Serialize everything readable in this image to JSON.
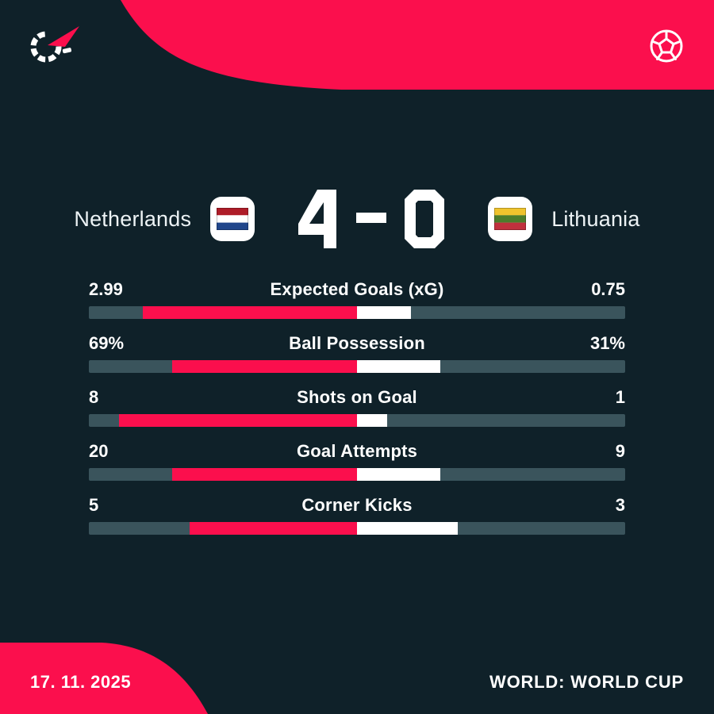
{
  "theme": {
    "bg": "#0f2129",
    "accent": "#fb0f4d",
    "track": "#3a545c",
    "text": "#ffffff",
    "name_text": "#edf3f5"
  },
  "header": {
    "logo_icon": "flashscore-logo",
    "sport_icon": "football-ball"
  },
  "scoreboard": {
    "home_name": "Netherlands",
    "away_name": "Lithuania",
    "home_score": "4",
    "away_score": "0",
    "separator": "-",
    "home_flag": {
      "name": "netherlands-flag",
      "stripes": [
        "#AE1C28",
        "#FFFFFF",
        "#21468B"
      ]
    },
    "away_flag": {
      "name": "lithuania-flag",
      "stripes": [
        "#EFC32D",
        "#4C7D2B",
        "#C0313D"
      ]
    }
  },
  "stats": {
    "rows": [
      {
        "label": "Expected Goals (xG)",
        "home": "2.99",
        "away": "0.75",
        "home_num": 2.99,
        "away_num": 0.75
      },
      {
        "label": "Ball Possession",
        "home": "69%",
        "away": "31%",
        "home_num": 69,
        "away_num": 31
      },
      {
        "label": "Shots on Goal",
        "home": "8",
        "away": "1",
        "home_num": 8,
        "away_num": 1
      },
      {
        "label": "Goal Attempts",
        "home": "20",
        "away": "9",
        "home_num": 20,
        "away_num": 9
      },
      {
        "label": "Corner Kicks",
        "home": "5",
        "away": "3",
        "home_num": 5,
        "away_num": 3
      }
    ]
  },
  "footer": {
    "date": "17. 11. 2025",
    "competition": "WORLD: WORLD CUP"
  }
}
